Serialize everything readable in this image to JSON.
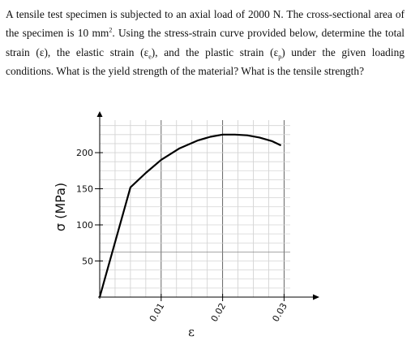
{
  "problem": {
    "p1": "A tensile test specimen is subjected to an axial load of 2000 N. The cross-sectional area of the specimen is 10 mm",
    "p1_sup": "2",
    "p2": ". Using the stress-strain curve provided below, determine the total strain (ε), the elastic strain (ε",
    "sub_e": "e",
    "p3": "), and the plastic strain (ε",
    "sub_p": "p",
    "p4": ") under the given loading conditions. What is the yield strength of the material? What is the tensile strength?"
  },
  "chart_data": {
    "type": "line",
    "title": "",
    "xlabel": "ε",
    "ylabel": "σ (MPa)",
    "xlim": [
      0,
      0.031
    ],
    "ylim": [
      0,
      245
    ],
    "x_ticks": [
      0.01,
      0.02,
      0.03
    ],
    "x_tick_labels": [
      "0.01",
      "0.02",
      "0.03"
    ],
    "y_ticks": [
      50,
      100,
      150,
      200
    ],
    "y_tick_labels": [
      "50",
      "100",
      "150",
      "200"
    ],
    "grid": true,
    "series": [
      {
        "x": [
          0,
          0.005,
          0.0075,
          0.01,
          0.013,
          0.016,
          0.018,
          0.02,
          0.022,
          0.024,
          0.026,
          0.028,
          0.0295
        ],
        "y": [
          0,
          152,
          172,
          190,
          206,
          217,
          222,
          225,
          225,
          224,
          221,
          216,
          210
        ]
      }
    ]
  }
}
